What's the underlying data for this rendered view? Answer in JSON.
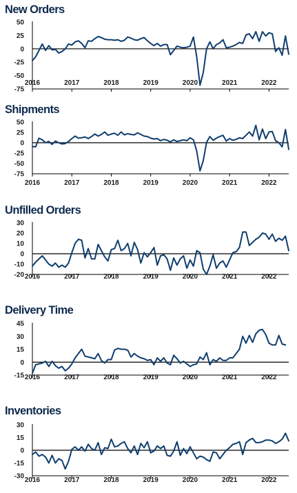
{
  "colors": {
    "title": "#0e2a4e",
    "line": "#0e3d6e",
    "axis": "#000000"
  },
  "chart_data": [
    {
      "type": "line",
      "title": "New Orders",
      "xlabel": "",
      "ylabel": "",
      "x_start": "2016-01",
      "frequency": "monthly",
      "x_ticks": [
        "2016",
        "2017",
        "2018",
        "2019",
        "2020",
        "2021",
        "2022"
      ],
      "y_ticks": [
        50,
        25,
        0,
        -25,
        -50,
        -75
      ],
      "ylim": [
        -75,
        50
      ],
      "grid": false,
      "series": [
        {
          "values": [
            -22,
            -15,
            -3,
            9,
            -3,
            6,
            -2,
            -1,
            -8,
            -5,
            0,
            9,
            7,
            13,
            15,
            10,
            2,
            15,
            14,
            19,
            23,
            21,
            18,
            17,
            17,
            16,
            17,
            14,
            16,
            22,
            20,
            17,
            16,
            19,
            21,
            15,
            10,
            6,
            10,
            5,
            8,
            8,
            -11,
            -3,
            5,
            3,
            2,
            3,
            5,
            22,
            -15,
            -68,
            -44,
            0,
            13,
            0,
            8,
            11,
            17,
            2,
            3,
            5,
            8,
            12,
            10,
            26,
            28,
            19,
            32,
            14,
            32,
            24,
            30,
            28,
            -5,
            2,
            -12,
            24,
            -10
          ]
        }
      ]
    },
    {
      "type": "line",
      "title": "Shipments",
      "xlabel": "",
      "ylabel": "",
      "x_start": "2016-01",
      "frequency": "monthly",
      "x_ticks": [
        "2016",
        "2017",
        "2018",
        "2019",
        "2020",
        "2021",
        "2022"
      ],
      "y_ticks": [
        50,
        25,
        0,
        -25,
        -50,
        -75
      ],
      "ylim": [
        -75,
        50
      ],
      "grid": false,
      "series": [
        {
          "values": [
            -9,
            -10,
            11,
            7,
            0,
            3,
            -4,
            4,
            0,
            -3,
            -2,
            3,
            10,
            16,
            11,
            12,
            14,
            10,
            15,
            21,
            16,
            20,
            26,
            18,
            21,
            23,
            18,
            26,
            19,
            22,
            20,
            19,
            24,
            20,
            16,
            15,
            11,
            9,
            10,
            5,
            8,
            6,
            2,
            7,
            3,
            5,
            7,
            5,
            12,
            7,
            -20,
            -68,
            -43,
            1,
            15,
            6,
            11,
            15,
            18,
            4,
            10,
            6,
            8,
            12,
            10,
            18,
            26,
            16,
            42,
            7,
            33,
            10,
            26,
            27,
            5,
            0,
            -10,
            32,
            -16
          ]
        }
      ]
    },
    {
      "type": "line",
      "title": "Unfilled Orders",
      "xlabel": "",
      "ylabel": "",
      "x_start": "2016-01",
      "frequency": "monthly",
      "x_ticks": [
        "2016",
        "2017",
        "2018",
        "2019",
        "2020",
        "2021",
        "2022"
      ],
      "y_ticks": [
        30,
        20,
        10,
        0,
        -10,
        -20
      ],
      "ylim": [
        -20,
        30
      ],
      "grid": false,
      "series": [
        {
          "values": [
            -12,
            -8,
            -5,
            -2,
            -6,
            -10,
            -12,
            -9,
            -13,
            -11,
            -13,
            -9,
            1,
            10,
            14,
            13,
            -4,
            5,
            -5,
            -5,
            9,
            3,
            -3,
            -7,
            4,
            5,
            13,
            3,
            5,
            10,
            -2,
            11,
            4,
            -9,
            1,
            -3,
            1,
            6,
            -11,
            -2,
            -1,
            -5,
            -16,
            -4,
            -11,
            -5,
            -2,
            -14,
            -6,
            -12,
            3,
            1,
            -15,
            -20,
            -12,
            -1,
            -14,
            -9,
            -7,
            -13,
            -6,
            1,
            2,
            6,
            21,
            21,
            8,
            11,
            14,
            16,
            20,
            19,
            14,
            19,
            12,
            15,
            13,
            17,
            3
          ]
        }
      ]
    },
    {
      "type": "line",
      "title": "Delivery Time",
      "xlabel": "",
      "ylabel": "",
      "x_start": "2016-01",
      "frequency": "monthly",
      "x_ticks": [
        "2016",
        "2017",
        "2018",
        "2019",
        "2020",
        "2021",
        "2022"
      ],
      "y_ticks": [
        45,
        30,
        15,
        0,
        -15
      ],
      "ylim": [
        -15,
        45
      ],
      "grid": false,
      "series": [
        {
          "values": [
            -13,
            -3,
            -2,
            -1,
            1,
            -5,
            1,
            -4,
            -7,
            -5,
            -10,
            -7,
            -2,
            5,
            10,
            15,
            7,
            6,
            5,
            4,
            10,
            2,
            -1,
            3,
            3,
            14,
            16,
            15,
            15,
            14,
            6,
            10,
            7,
            5,
            4,
            2,
            3,
            -3,
            5,
            1,
            5,
            -1,
            -3,
            8,
            4,
            -1,
            1,
            -2,
            -5,
            -3,
            -2,
            6,
            3,
            11,
            -3,
            3,
            1,
            5,
            2,
            2,
            5,
            5,
            10,
            15,
            30,
            22,
            31,
            23,
            33,
            37,
            38,
            32,
            22,
            20,
            20,
            31,
            21,
            20
          ]
        }
      ]
    },
    {
      "type": "line",
      "title": "Inventories",
      "xlabel": "",
      "ylabel": "",
      "x_start": "2016-01",
      "frequency": "monthly",
      "x_ticks": [
        "2016",
        "2017",
        "2018",
        "2019",
        "2020",
        "2021",
        "2022"
      ],
      "y_ticks": [
        30,
        15,
        0,
        -15,
        -30
      ],
      "ylim": [
        -30,
        30
      ],
      "grid": false,
      "series": [
        {
          "values": [
            -5,
            -2,
            -7,
            -5,
            -8,
            -15,
            -6,
            -15,
            -10,
            -12,
            -22,
            -13,
            1,
            4,
            0,
            4,
            -1,
            7,
            2,
            0,
            9,
            -5,
            3,
            2,
            13,
            4,
            5,
            8,
            10,
            2,
            -3,
            5,
            -5,
            8,
            3,
            10,
            -3,
            -1,
            5,
            2,
            5,
            -6,
            -7,
            -1,
            10,
            -6,
            2,
            -4,
            4,
            -3,
            -10,
            -7,
            -8,
            -11,
            -13,
            -2,
            -3,
            -10,
            -5,
            0,
            3,
            7,
            8,
            10,
            -5,
            9,
            12,
            14,
            9,
            9,
            10,
            12,
            12,
            11,
            8,
            10,
            13,
            20,
            11
          ]
        }
      ]
    }
  ]
}
